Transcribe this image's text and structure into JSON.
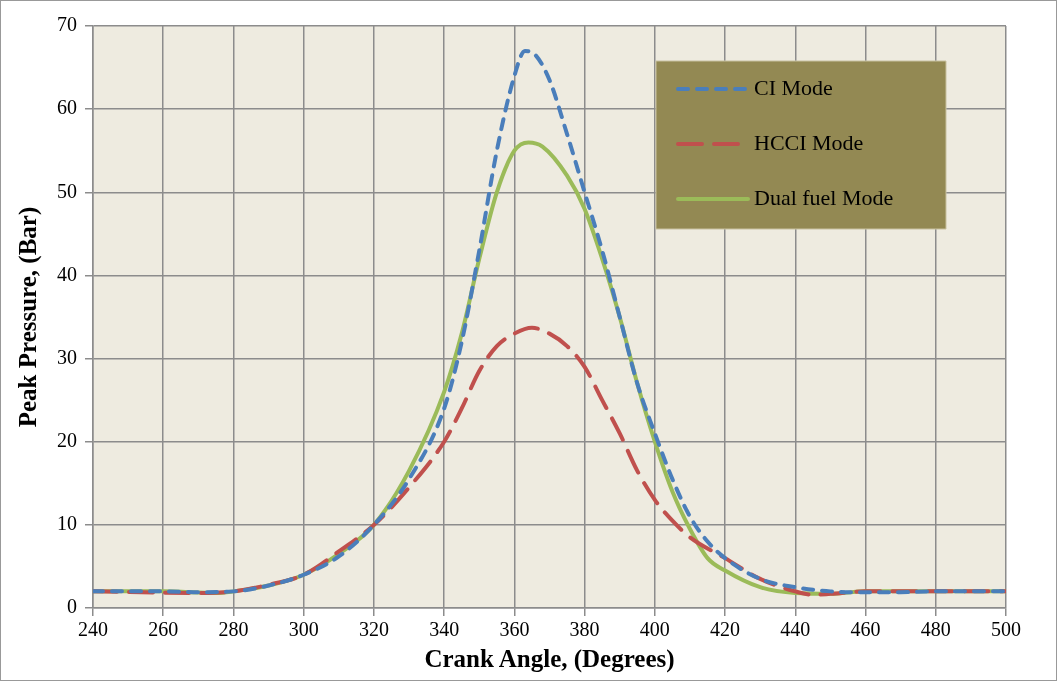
{
  "chart_data": {
    "type": "line",
    "xlabel": "Crank Angle, (Degrees)",
    "ylabel": "Peak Pressure, (Bar)",
    "xlim": [
      240,
      500
    ],
    "xticks": [
      240,
      260,
      280,
      300,
      320,
      340,
      360,
      380,
      400,
      420,
      440,
      460,
      480,
      500
    ],
    "ylim": [
      0,
      70
    ],
    "yticks": [
      0,
      10,
      20,
      30,
      40,
      50,
      60,
      70
    ],
    "grid": true,
    "legend": "top right",
    "marker": "none",
    "series": [
      {
        "name": "CI Mode",
        "color": "#4a7ebb",
        "line_style": "dashed",
        "x": [
          240,
          260,
          270,
          280,
          290,
          300,
          310,
          320,
          330,
          340,
          345,
          350,
          355,
          360,
          363,
          366,
          370,
          375,
          380,
          385,
          390,
          395,
          400,
          405,
          410,
          415,
          420,
          430,
          440,
          450,
          460,
          470,
          480,
          500
        ],
        "values": [
          2,
          2,
          1.9,
          2,
          2.7,
          4,
          6.2,
          10,
          15.5,
          24,
          32,
          43,
          55,
          64,
          67,
          66.5,
          63.5,
          57,
          50,
          43,
          35,
          27,
          21,
          15.5,
          11,
          8,
          6,
          3.5,
          2.5,
          2,
          1.9,
          1.9,
          2,
          2
        ]
      },
      {
        "name": "HCCI Mode",
        "color": "#c0504d",
        "line_style": "dashed",
        "x": [
          240,
          270,
          280,
          290,
          300,
          310,
          320,
          330,
          340,
          345,
          350,
          355,
          360,
          365,
          370,
          375,
          380,
          385,
          390,
          395,
          400,
          405,
          410,
          420,
          430,
          440,
          445,
          450,
          460,
          500
        ],
        "values": [
          2,
          1.8,
          2,
          2.8,
          4,
          6.8,
          10,
          14.5,
          20,
          24,
          28.5,
          31.5,
          33,
          33.7,
          33,
          31.5,
          29,
          25,
          21,
          16.5,
          13,
          10.5,
          8.5,
          6,
          3.5,
          2,
          1.6,
          1.7,
          2,
          2
        ]
      },
      {
        "name": "Dual fuel Mode",
        "color": "#9bbb59",
        "line_style": "solid",
        "x": [
          240,
          260,
          275,
          280,
          290,
          300,
          310,
          320,
          330,
          340,
          345,
          350,
          355,
          360,
          364,
          368,
          375,
          380,
          385,
          390,
          395,
          400,
          405,
          410,
          415,
          420,
          430,
          440,
          450,
          460,
          500
        ],
        "values": [
          2,
          2,
          1.8,
          2,
          2.7,
          4,
          6.5,
          10,
          16.5,
          26,
          33,
          42,
          50,
          55,
          56,
          55.5,
          52,
          48,
          42,
          35,
          27,
          20,
          14,
          9.5,
          6,
          4.5,
          2.5,
          1.8,
          1.7,
          2,
          2
        ]
      }
    ]
  }
}
